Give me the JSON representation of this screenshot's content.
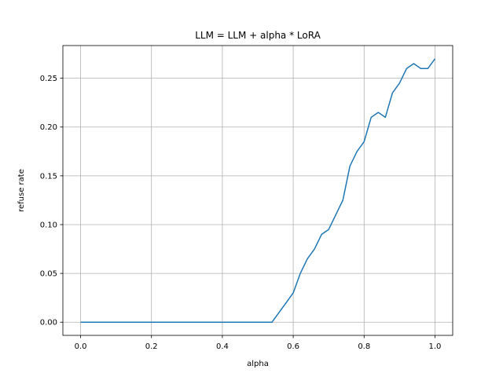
{
  "chart_data": {
    "type": "line",
    "title": "LLM = LLM + alpha * LoRA",
    "xlabel": "alpha",
    "ylabel": "refuse rate",
    "xlim": [
      -0.05,
      1.05
    ],
    "ylim": [
      -0.0135,
      0.2835
    ],
    "xticks": [
      0.0,
      0.2,
      0.4,
      0.6,
      0.8,
      1.0
    ],
    "xtick_labels": [
      "0.0",
      "0.2",
      "0.4",
      "0.6",
      "0.8",
      "1.0"
    ],
    "yticks": [
      0.0,
      0.05,
      0.1,
      0.15,
      0.2,
      0.25
    ],
    "ytick_labels": [
      "0.00",
      "0.05",
      "0.10",
      "0.15",
      "0.20",
      "0.25"
    ],
    "grid": true,
    "series": [
      {
        "color": "#1f77b4",
        "x": [
          0.0,
          0.02,
          0.04,
          0.06,
          0.08,
          0.1,
          0.12,
          0.14,
          0.16,
          0.18,
          0.2,
          0.22,
          0.24,
          0.26,
          0.28,
          0.3,
          0.32,
          0.34,
          0.36,
          0.38,
          0.4,
          0.42,
          0.44,
          0.46,
          0.48,
          0.5,
          0.52,
          0.54,
          0.56,
          0.58,
          0.6,
          0.62,
          0.64,
          0.66,
          0.68,
          0.7,
          0.72,
          0.74,
          0.76,
          0.78,
          0.8,
          0.82,
          0.84,
          0.86,
          0.88,
          0.9,
          0.92,
          0.94,
          0.96,
          0.98,
          1.0
        ],
        "y": [
          0,
          0,
          0,
          0,
          0,
          0,
          0,
          0,
          0,
          0,
          0,
          0,
          0,
          0,
          0,
          0,
          0,
          0,
          0,
          0,
          0,
          0,
          0,
          0,
          0,
          0,
          0,
          0,
          0.01,
          0.02,
          0.03,
          0.05,
          0.065,
          0.075,
          0.09,
          0.095,
          0.11,
          0.125,
          0.16,
          0.175,
          0.185,
          0.21,
          0.215,
          0.21,
          0.235,
          0.245,
          0.26,
          0.265,
          0.26,
          0.26,
          0.27
        ]
      }
    ]
  }
}
